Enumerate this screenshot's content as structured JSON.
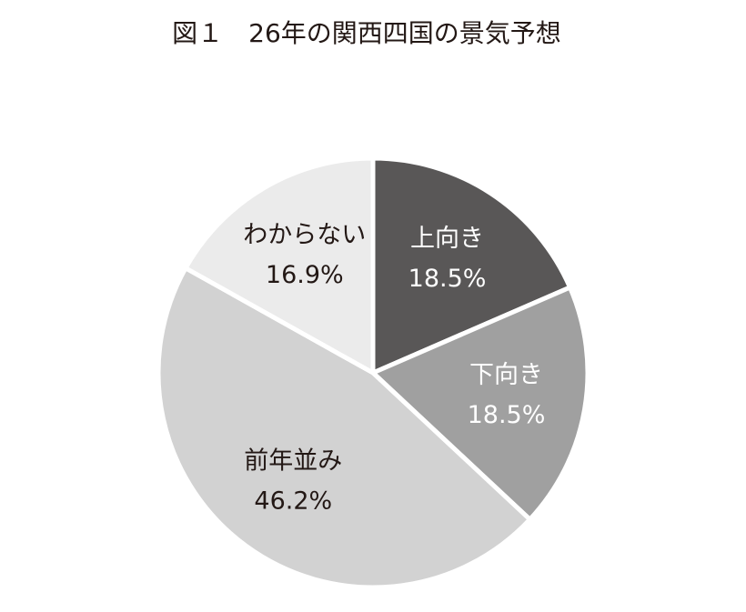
{
  "chart_data": {
    "type": "pie",
    "title": "図１　26年の関西四国の景気予想",
    "categories": [
      "上向き",
      "下向き",
      "前年並み",
      "わからない"
    ],
    "values": [
      18.5,
      18.5,
      46.2,
      16.9
    ],
    "value_labels": [
      "18.5%",
      "18.5%",
      "46.2%",
      "16.9%"
    ],
    "colors": [
      "#595757",
      "#a0a0a0",
      "#d2d2d2",
      "#ebebeb"
    ],
    "label_colors": [
      "#ffffff",
      "#ffffff",
      "#231815",
      "#231815"
    ]
  }
}
